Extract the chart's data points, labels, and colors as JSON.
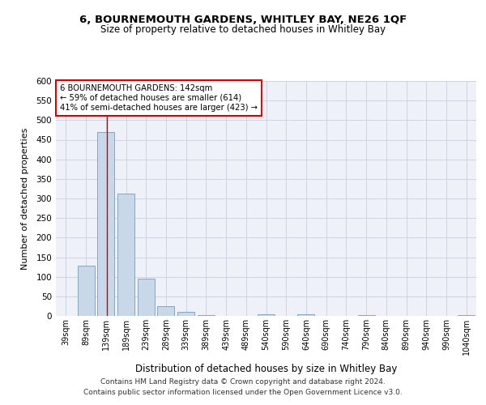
{
  "title": "6, BOURNEMOUTH GARDENS, WHITLEY BAY, NE26 1QF",
  "subtitle": "Size of property relative to detached houses in Whitley Bay",
  "xlabel": "Distribution of detached houses by size in Whitley Bay",
  "ylabel": "Number of detached properties",
  "footer1": "Contains HM Land Registry data © Crown copyright and database right 2024.",
  "footer2": "Contains public sector information licensed under the Open Government Licence v3.0.",
  "annotation_line1": "6 BOURNEMOUTH GARDENS: 142sqm",
  "annotation_line2": "← 59% of detached houses are smaller (614)",
  "annotation_line3": "41% of semi-detached houses are larger (423) →",
  "bar_labels": [
    "39sqm",
    "89sqm",
    "139sqm",
    "189sqm",
    "239sqm",
    "289sqm",
    "339sqm",
    "389sqm",
    "439sqm",
    "489sqm",
    "540sqm",
    "590sqm",
    "640sqm",
    "690sqm",
    "740sqm",
    "790sqm",
    "840sqm",
    "890sqm",
    "940sqm",
    "990sqm",
    "1040sqm"
  ],
  "bar_values": [
    0,
    128,
    470,
    312,
    96,
    25,
    10,
    3,
    0,
    0,
    5,
    0,
    5,
    0,
    0,
    3,
    0,
    0,
    0,
    0,
    3
  ],
  "bar_color": "#c8d8e8",
  "bar_edge_color": "#7a9cb8",
  "red_line_x": 2.06,
  "ylim": [
    0,
    600
  ],
  "yticks": [
    0,
    50,
    100,
    150,
    200,
    250,
    300,
    350,
    400,
    450,
    500,
    550,
    600
  ],
  "annotation_box_color": "#ffffff",
  "annotation_box_edge": "#cc0000",
  "grid_color": "#c8d0dc",
  "background_color": "#eef2f8",
  "title_fontsize": 9.5,
  "subtitle_fontsize": 8.5,
  "footer_fontsize": 6.5
}
